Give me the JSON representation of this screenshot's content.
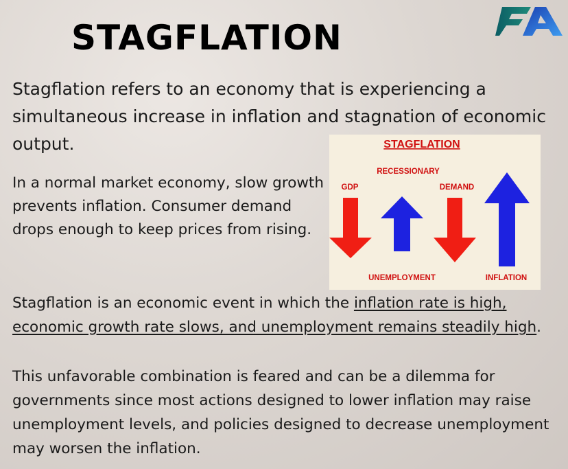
{
  "title": "STAGFLATION",
  "logo": {
    "icon": "fa-brand-logo",
    "colors": [
      "#0b5d64",
      "#2f7de0"
    ]
  },
  "intro": "Stagflation refers to an economy that is experiencing a simultaneous increase in inflation and stagnation of economic output.",
  "paragraph2": "In a normal market economy, slow growth prevents inflation. Consumer demand drops enough to keep prices from rising.",
  "paragraph3": {
    "before": "Stagflation is an economic event in which the ",
    "underlined": "inflation rate is high, economic growth rate slows, and unemployment remains steadily high",
    "after": "."
  },
  "paragraph4": "This unfavorable combination is feared and can be a dilemma for governments since most actions designed to lower inflation may raise unemployment levels, and policies designed to decrease unemployment may worsen the inflation.",
  "figure": {
    "title": "STAGFLATION",
    "labels": {
      "recessionary": "RECESSIONARY",
      "gdp": "GDP",
      "demand": "DEMAND",
      "unemployment": "UNEMPLOYMENT",
      "inflation": "INFLATION"
    },
    "colors": {
      "down": "#f01e14",
      "up": "#1d22e0",
      "label": "#d01010",
      "background": "#f6efdf"
    }
  }
}
